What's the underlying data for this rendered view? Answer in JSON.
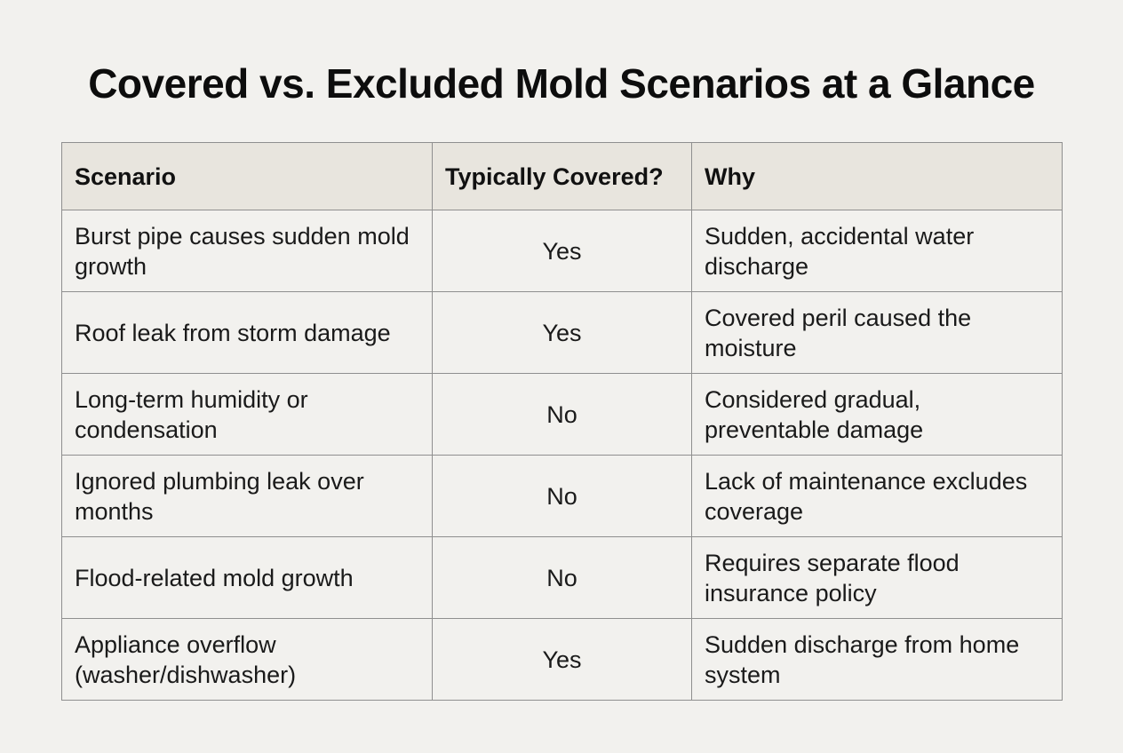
{
  "title": "Covered vs. Excluded Mold Scenarios at a Glance",
  "table": {
    "headers": [
      "Scenario",
      "Typically Covered?",
      "Why"
    ],
    "rows": [
      {
        "scenario": "Burst pipe causes sudden mold growth",
        "covered": "Yes",
        "why": "Sudden, accidental water discharge"
      },
      {
        "scenario": "Roof leak from storm damage",
        "covered": "Yes",
        "why": "Covered peril caused the moisture"
      },
      {
        "scenario": "Long-term humidity or condensation",
        "covered": "No",
        "why": "Considered gradual, preventable damage"
      },
      {
        "scenario": "Ignored plumbing leak over months",
        "covered": "No",
        "why": "Lack of maintenance excludes coverage"
      },
      {
        "scenario": "Flood-related mold growth",
        "covered": "No",
        "why": "Requires separate flood insurance policy"
      },
      {
        "scenario": "Appliance overflow (washer/dishwasher)",
        "covered": "Yes",
        "why": "Sudden discharge from home system"
      }
    ]
  }
}
